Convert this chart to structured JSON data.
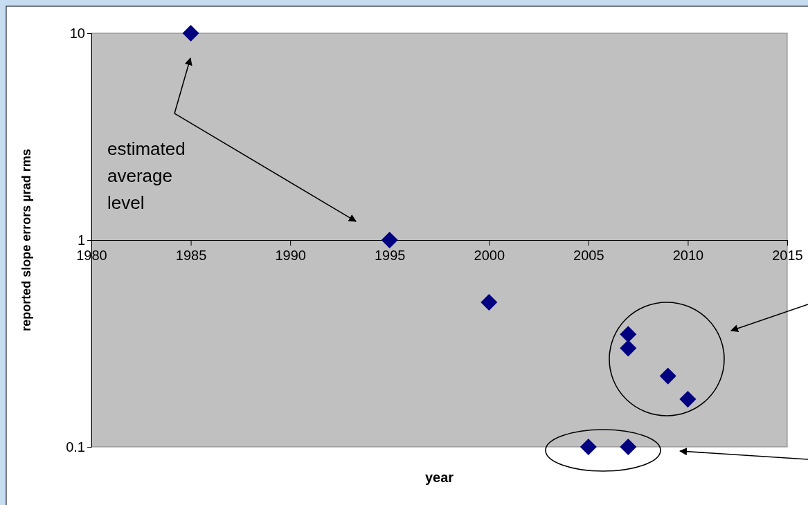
{
  "chart_data": {
    "type": "scatter",
    "xlabel": "year",
    "ylabel": "reported slope errors µrad rms",
    "x": [
      1985,
      1995,
      2000,
      2007,
      2007,
      2009,
      2010,
      2005,
      2007
    ],
    "values": [
      10,
      1,
      0.5,
      0.35,
      0.3,
      0.22,
      0.17,
      0.1,
      0.1
    ],
    "color": "#000080",
    "marker": "diamond",
    "log": "y",
    "xlim": [
      1980,
      2015
    ],
    "xticks": [
      1980,
      1985,
      1990,
      1995,
      2000,
      2005,
      2010,
      2015
    ],
    "ylim": [
      0.1,
      10
    ],
    "yticks": [
      0.1,
      1,
      10
    ],
    "annotations": [
      "estimated average level"
    ]
  }
}
